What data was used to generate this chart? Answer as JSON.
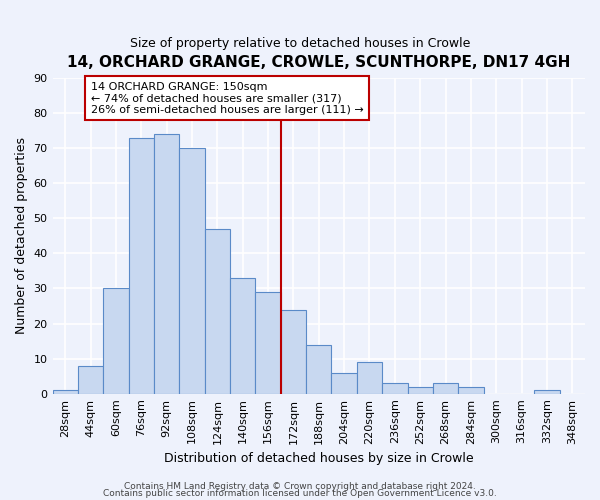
{
  "title": "14, ORCHARD GRANGE, CROWLE, SCUNTHORPE, DN17 4GH",
  "subtitle": "Size of property relative to detached houses in Crowle",
  "xlabel": "Distribution of detached houses by size in Crowle",
  "ylabel": "Number of detached properties",
  "bar_labels": [
    "28sqm",
    "44sqm",
    "60sqm",
    "76sqm",
    "92sqm",
    "108sqm",
    "124sqm",
    "140sqm",
    "156sqm",
    "172sqm",
    "188sqm",
    "204sqm",
    "220sqm",
    "236sqm",
    "252sqm",
    "268sqm",
    "284sqm",
    "300sqm",
    "316sqm",
    "332sqm",
    "348sqm"
  ],
  "bar_heights": [
    1,
    8,
    30,
    73,
    74,
    70,
    47,
    33,
    29,
    24,
    14,
    6,
    9,
    3,
    2,
    3,
    2,
    0,
    0,
    1,
    0
  ],
  "bar_color": "#c8d8f0",
  "bar_edge_color": "#5a8ac8",
  "vline_x": 8.5,
  "vline_color": "#bb0000",
  "annotation_text": "14 ORCHARD GRANGE: 150sqm\n← 74% of detached houses are smaller (317)\n26% of semi-detached houses are larger (111) →",
  "annotation_box_facecolor": "#ffffff",
  "annotation_box_edgecolor": "#bb0000",
  "ylim": [
    0,
    90
  ],
  "yticks": [
    0,
    10,
    20,
    30,
    40,
    50,
    60,
    70,
    80,
    90
  ],
  "footer1": "Contains HM Land Registry data © Crown copyright and database right 2024.",
  "footer2": "Contains public sector information licensed under the Open Government Licence v3.0.",
  "bg_color": "#eef2fc",
  "grid_color": "#ffffff",
  "title_fontsize": 11,
  "subtitle_fontsize": 9,
  "ylabel_fontsize": 9,
  "xlabel_fontsize": 9,
  "tick_fontsize": 8,
  "annotation_fontsize": 8,
  "footer_fontsize": 6.5
}
